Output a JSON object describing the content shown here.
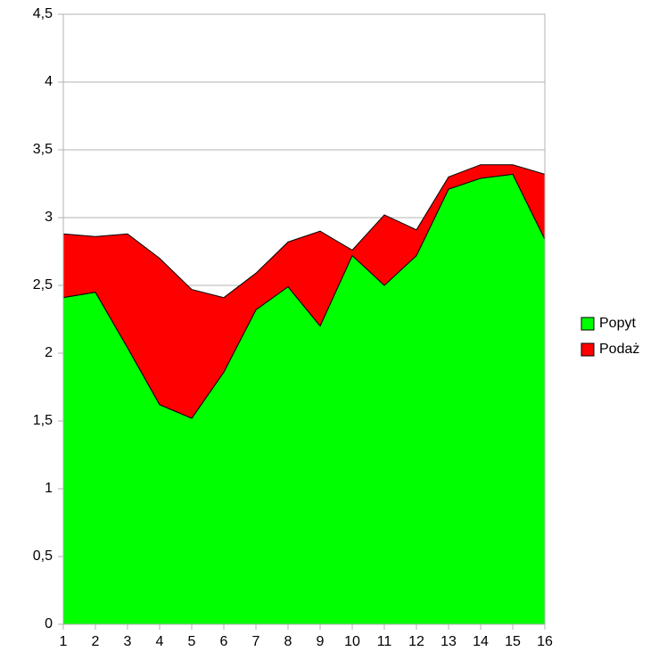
{
  "chart_data": {
    "type": "stacked-area",
    "categories": [
      "1",
      "2",
      "3",
      "4",
      "5",
      "6",
      "7",
      "8",
      "9",
      "10",
      "11",
      "12",
      "13",
      "14",
      "15",
      "16"
    ],
    "series": [
      {
        "name": "Popyt",
        "color": "#00ff00",
        "values": [
          2.41,
          2.45,
          2.04,
          1.62,
          1.52,
          1.86,
          2.32,
          2.49,
          2.2,
          2.72,
          2.5,
          2.72,
          3.21,
          3.29,
          3.32,
          2.84
        ]
      },
      {
        "name": "Podaż",
        "color": "#ff0000",
        "values": [
          0.47,
          0.41,
          0.84,
          1.08,
          0.95,
          0.55,
          0.27,
          0.33,
          0.7,
          0.04,
          0.52,
          0.19,
          0.09,
          0.1,
          0.07,
          0.48
        ]
      }
    ],
    "ylim": [
      0,
      4.5
    ],
    "yticks": [
      0,
      {
        "value": 0.5,
        "label": "0,5"
      },
      1,
      {
        "value": 1.5,
        "label": "1,5"
      },
      2,
      {
        "value": 2.5,
        "label": "2,5"
      },
      3,
      {
        "value": 3.5,
        "label": "3,5"
      },
      4,
      {
        "value": 4.5,
        "label": "4,5"
      }
    ],
    "grid": true,
    "legend": "right"
  }
}
